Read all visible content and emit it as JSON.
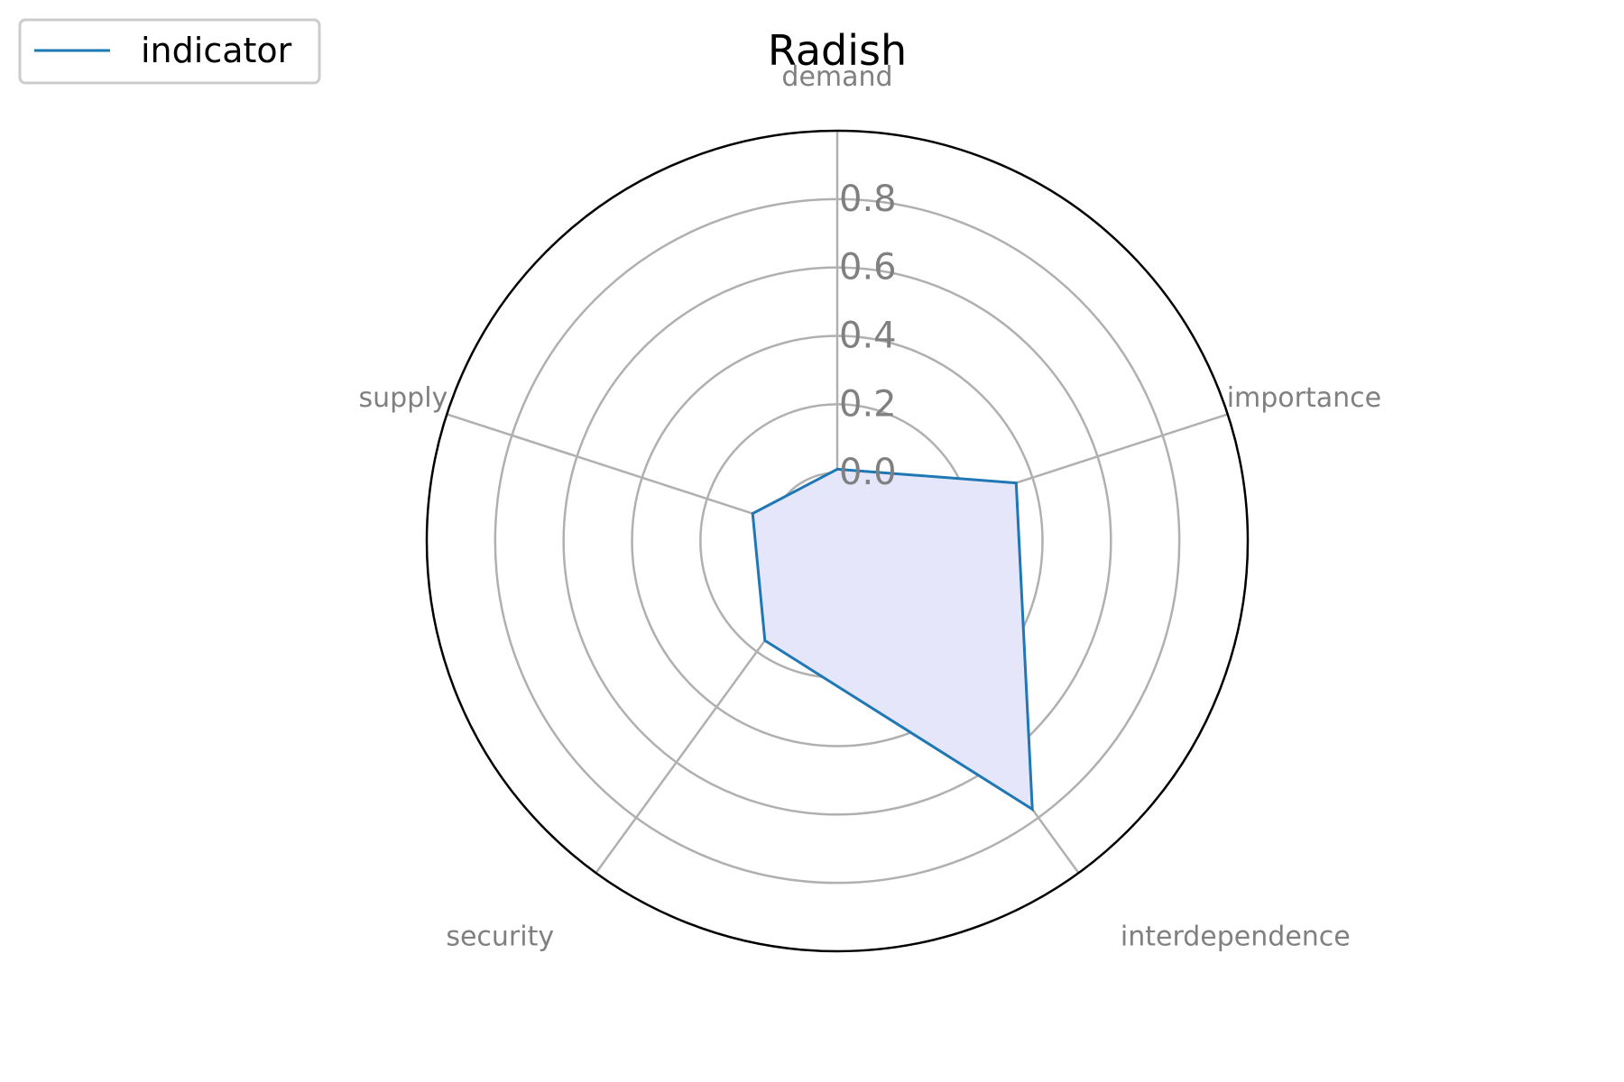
{
  "chart_data": {
    "type": "radar",
    "title": "Radish",
    "axes": [
      "demand",
      "importance",
      "interdependence",
      "security",
      "supply"
    ],
    "series": [
      {
        "name": "indicator",
        "values": [
          0.01,
          0.35,
          0.77,
          0.16,
          0.06
        ]
      }
    ],
    "rlim": [
      -0.2,
      1.0
    ],
    "rticks": [
      0.0,
      0.2,
      0.4,
      0.6,
      0.8
    ],
    "rtick_labels": [
      "0.0",
      "0.2",
      "0.4",
      "0.6",
      "0.8"
    ],
    "grid": true,
    "legend": {
      "position": "top-left",
      "entries": [
        "indicator"
      ]
    },
    "colors": {
      "line": "#1f77b4",
      "fill": "#e6e6fa",
      "grid": "#b0b0b0",
      "outer_circle": "#000000",
      "label": "#808080"
    }
  }
}
